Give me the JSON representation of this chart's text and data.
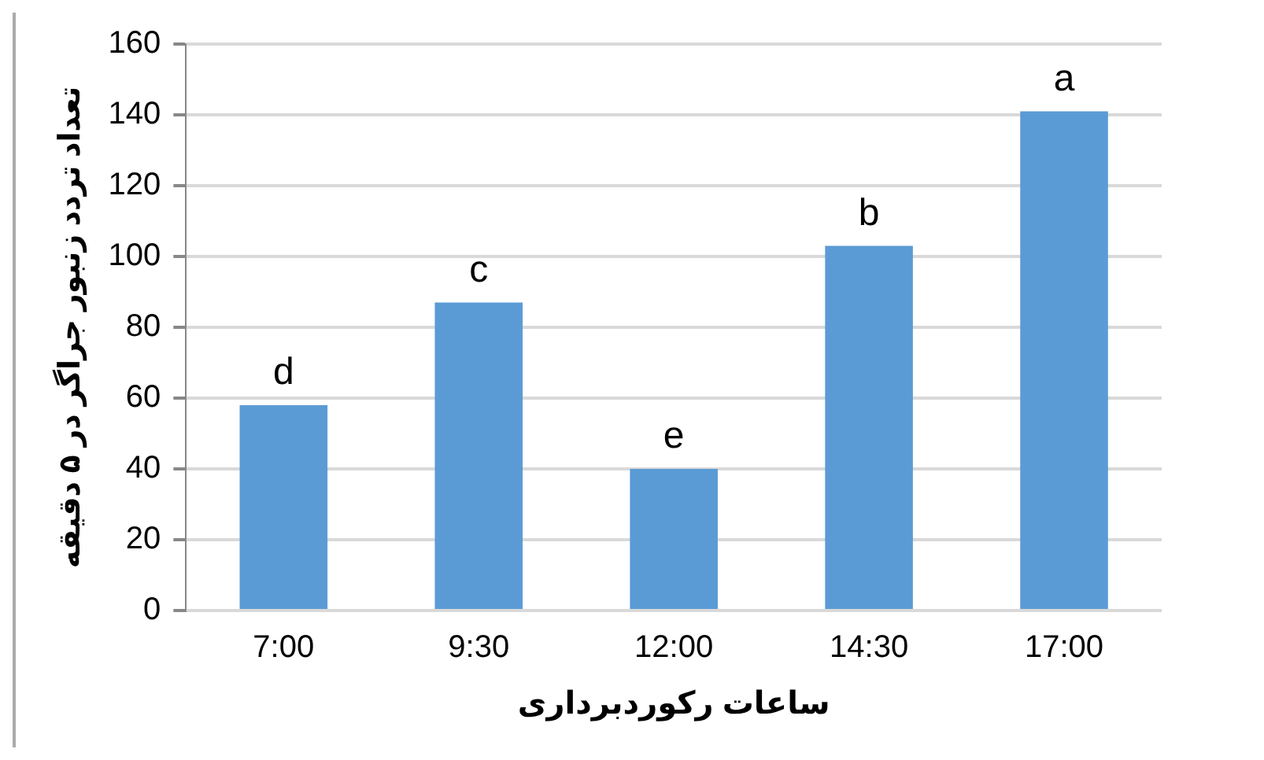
{
  "chart_data": {
    "type": "bar",
    "xlabel": "ساعات رکوردبرداری",
    "ylabel": "تعداد تردد زنبور جراگر در ۵ دقیقه",
    "categories": [
      "7:00",
      "9:30",
      "12:00",
      "14:30",
      "17:00"
    ],
    "values": [
      58,
      87,
      40,
      103,
      141
    ],
    "color": "#5b9bd5",
    "ylim": [
      0,
      160
    ],
    "yticks": [
      0,
      20,
      40,
      60,
      80,
      100,
      120,
      140,
      160
    ],
    "grid": "y",
    "annotations": [
      {
        "text": "d",
        "x": "7:00",
        "y": 58
      },
      {
        "text": "c",
        "x": "9:30",
        "y": 87
      },
      {
        "text": "e",
        "x": "12:00",
        "y": 40
      },
      {
        "text": "b",
        "x": "14:30",
        "y": 103
      },
      {
        "text": "a",
        "x": "17:00",
        "y": 141
      }
    ]
  }
}
